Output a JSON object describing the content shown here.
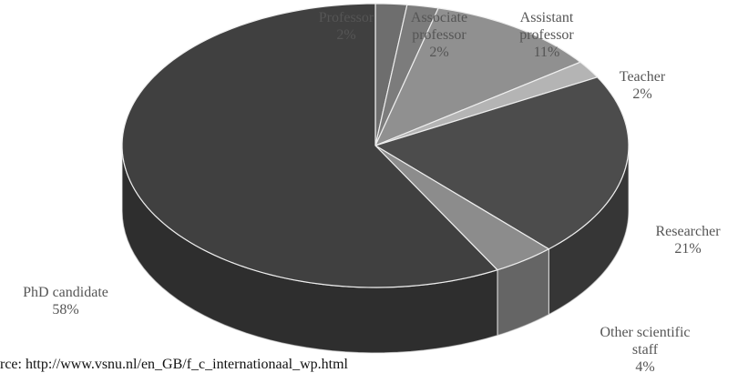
{
  "chart_data": {
    "type": "pie",
    "categories": [
      "Professor",
      "Associate professor",
      "Assistant professor",
      "Teacher",
      "Researcher",
      "Other scientific staff",
      "PhD candidate"
    ],
    "values": [
      2,
      2,
      11,
      2,
      21,
      4,
      58
    ],
    "value_labels": [
      "2%",
      "2%",
      "11%",
      "2%",
      "21%",
      "4%",
      "58%"
    ],
    "colors": [
      "#6e6e6e",
      "#7c7c7c",
      "#909090",
      "#b4b4b4",
      "#4c4c4c",
      "#8c8c8c",
      "#404040"
    ],
    "source": "rce: http://www.vsnu.nl/en_GB/f_c_internationaal_wp.html"
  }
}
